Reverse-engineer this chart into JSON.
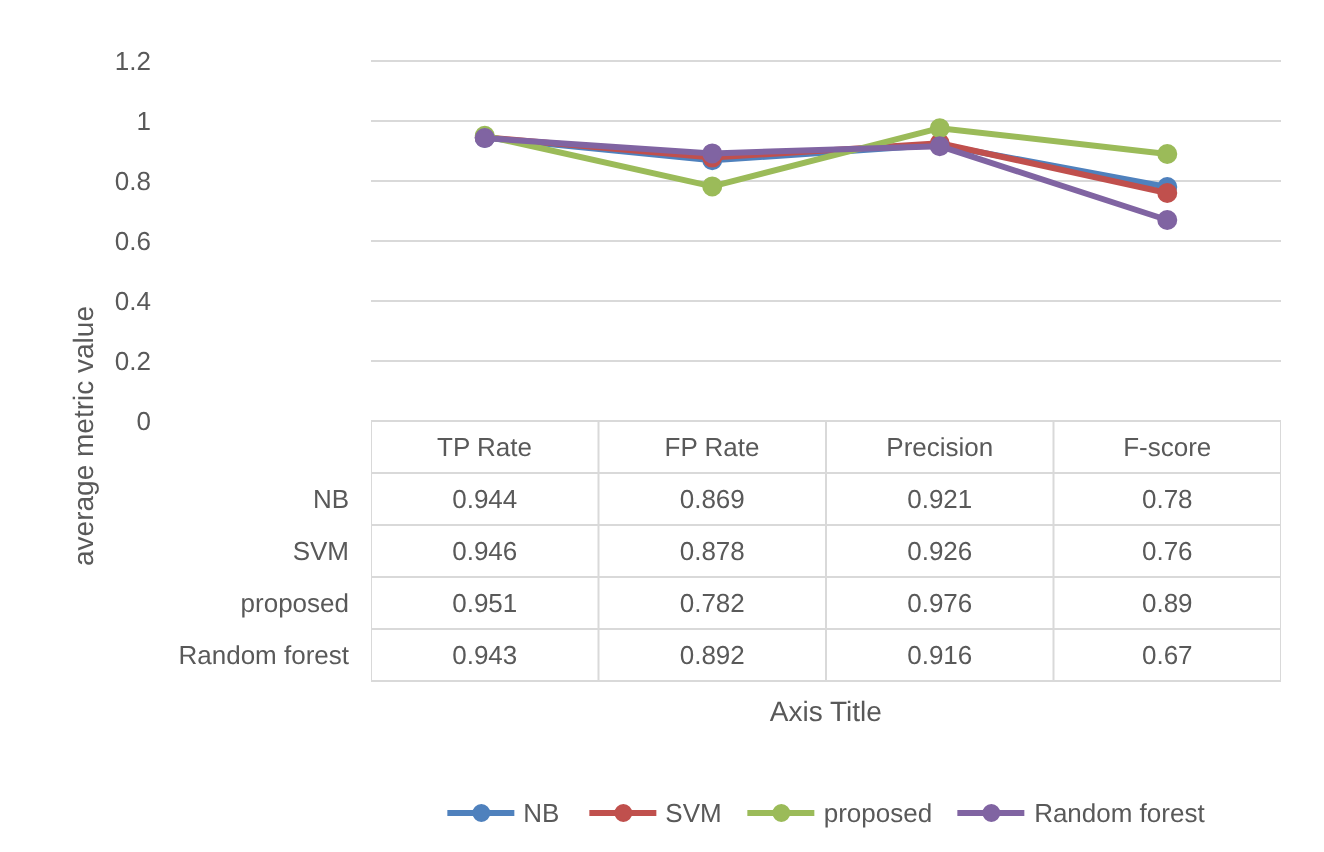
{
  "chart_data": {
    "type": "line",
    "ylabel": "average metric value",
    "annotations": [
      "Axis Title"
    ],
    "categories": [
      "TP Rate",
      "FP Rate",
      "Precision",
      "F-score"
    ],
    "series": [
      {
        "name": "NB",
        "color": "#4f81bd",
        "values": [
          0.944,
          0.869,
          0.921,
          0.78
        ]
      },
      {
        "name": "SVM",
        "color": "#c0504d",
        "values": [
          0.946,
          0.878,
          0.926,
          0.76
        ]
      },
      {
        "name": "proposed",
        "color": "#9bbb59",
        "values": [
          0.951,
          0.782,
          0.976,
          0.89
        ]
      },
      {
        "name": "Random forest",
        "color": "#8064a2",
        "values": [
          0.943,
          0.892,
          0.916,
          0.67
        ]
      }
    ],
    "ylim": [
      0,
      1.2
    ],
    "yticks": [
      0,
      0.2,
      0.4,
      0.6,
      0.8,
      1,
      1.2
    ],
    "grid": "y",
    "marker": "circle",
    "line_style": "solid",
    "data_labels": true,
    "legend": "bottom"
  }
}
